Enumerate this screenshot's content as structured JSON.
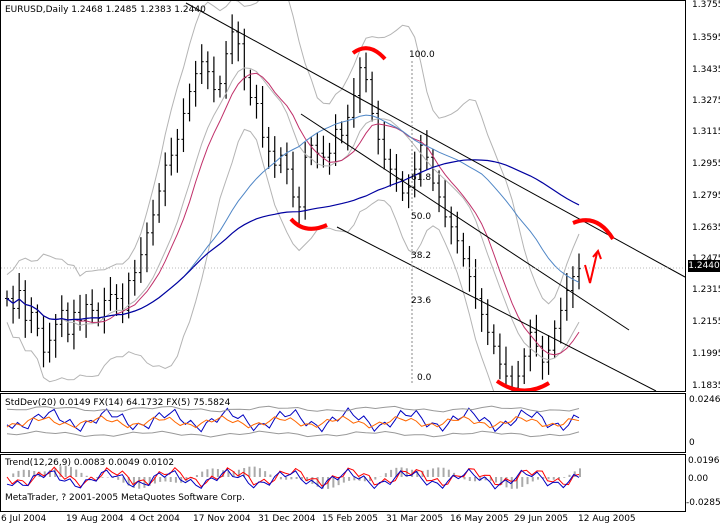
{
  "chart_info": {
    "title_line": "EURUSD,Daily  1.2468 1.2485 1.2383 1.2440",
    "current_price_label": "1.2440"
  },
  "price_axis": {
    "labels": [
      "1.3755",
      "1.3595",
      "1.3435",
      "1.3275",
      "1.3115",
      "1.2955",
      "1.2795",
      "1.2635",
      "1.2475",
      "1.2315",
      "1.2155",
      "1.1995",
      "1.1835"
    ]
  },
  "fib_levels": [
    "100.0",
    "61.8",
    "50.0",
    "38.2",
    "23.6",
    "0.0"
  ],
  "time_axis": {
    "labels": [
      "6 Jul 2004",
      "19 Aug 2004",
      "4 Oct 2004",
      "17 Nov 2004",
      "31 Dec 2004",
      "15 Feb 2005",
      "31 Mar 2005",
      "16 May 2005",
      "29 Jun 2005",
      "12 Aug 2005"
    ]
  },
  "stddev_panel": {
    "label": "StdDev(20) 0.0149  FX(14) 64.1732  FX(5) 75.5824",
    "axis_labels": [
      "0.0246",
      "0"
    ]
  },
  "trend_panel": {
    "label": "Trend(12,26,9) 0.0083 0.0049 0.0102",
    "axis_labels": [
      "0.0196",
      "0.00",
      "-0.0285"
    ]
  },
  "copyright": "MetaTrader, ? 2001-2005 MetaQuotes Software Corp.",
  "colors": {
    "ma_blue": "#0000a0",
    "ma_light_blue": "#4f86c6",
    "ma_magenta": "#c0306a",
    "bollinger": "#b4b4b4",
    "annotation_red": "#ff0000",
    "channel": "#000000",
    "price_label_bg": "#000000"
  },
  "chart_data": {
    "type": "line",
    "series": [
      {
        "values": [
          1.229,
          1.224,
          1.233,
          1.218,
          1.222,
          1.214,
          1.202,
          1.208,
          1.216,
          1.223,
          1.211,
          1.222,
          1.218,
          1.226,
          1.223,
          1.219,
          1.228,
          1.231,
          1.229,
          1.223,
          1.238,
          1.242,
          1.251,
          1.262,
          1.271,
          1.283,
          1.296,
          1.301,
          1.309,
          1.322,
          1.333,
          1.342,
          1.348,
          1.343,
          1.334,
          1.337,
          1.352,
          1.363,
          1.357,
          1.34,
          1.33,
          1.327,
          1.31,
          1.303,
          1.296,
          1.301,
          1.294,
          1.28,
          1.275,
          1.3,
          1.306,
          1.302,
          1.3,
          1.302,
          1.314,
          1.311,
          1.32,
          1.331,
          1.345,
          1.339,
          1.322,
          1.309,
          1.299,
          1.294,
          1.289,
          1.282,
          1.285,
          1.294,
          1.306,
          1.3,
          1.287,
          1.28,
          1.27,
          1.265,
          1.258,
          1.249,
          1.24,
          1.229,
          1.221,
          1.212,
          1.205,
          1.196,
          1.19,
          1.184,
          1.19,
          1.2,
          1.212,
          1.205,
          1.197,
          1.203,
          1.214,
          1.223,
          1.233,
          1.24,
          1.244
        ]
      }
    ]
  }
}
